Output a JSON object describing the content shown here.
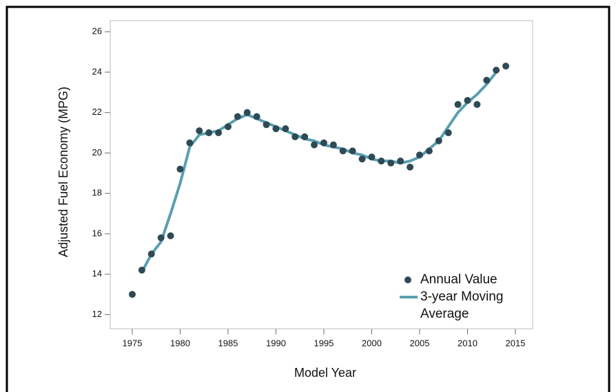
{
  "chart_data": {
    "type": "line",
    "x_label": "Model Year",
    "y_label": "Adjusted Fuel Economy (MPG)",
    "x": [
      1975,
      1976,
      1977,
      1978,
      1979,
      1980,
      1981,
      1982,
      1983,
      1984,
      1985,
      1986,
      1987,
      1988,
      1989,
      1990,
      1991,
      1992,
      1993,
      1994,
      1995,
      1996,
      1997,
      1998,
      1999,
      2000,
      2001,
      2002,
      2003,
      2004,
      2005,
      2006,
      2007,
      2008,
      2009,
      2010,
      2011,
      2012,
      2013,
      2014
    ],
    "series": [
      {
        "name": "Annual Value",
        "color": "#2e4a55",
        "mode": "markers",
        "values": [
          13.0,
          14.2,
          15.0,
          15.8,
          15.9,
          19.2,
          20.5,
          21.1,
          21.0,
          21.0,
          21.3,
          21.8,
          22.0,
          21.8,
          21.4,
          21.2,
          21.2,
          20.8,
          20.8,
          20.4,
          20.5,
          20.4,
          20.1,
          20.1,
          19.7,
          19.8,
          19.6,
          19.5,
          19.6,
          19.3,
          19.9,
          20.1,
          20.6,
          21.0,
          22.4,
          22.6,
          22.4,
          23.6,
          24.1,
          24.3
        ]
      },
      {
        "name": "3-year Moving Average",
        "color": "#5a9fb0",
        "mode": "line",
        "values": [
          null,
          14.1,
          15.0,
          15.6,
          17.0,
          18.5,
          20.3,
          20.9,
          21.0,
          21.1,
          21.4,
          21.7,
          21.9,
          21.7,
          21.5,
          21.3,
          21.1,
          20.9,
          20.7,
          20.6,
          20.4,
          20.3,
          20.2,
          20.0,
          19.9,
          19.7,
          19.6,
          19.6,
          19.5,
          19.6,
          19.8,
          20.2,
          20.6,
          21.3,
          22.0,
          22.5,
          22.9,
          23.4,
          24.0,
          null
        ]
      }
    ],
    "xlim": [
      1972.7,
      2016.8
    ],
    "ylim": [
      11.3,
      26.55
    ],
    "xticks": [
      1975,
      1980,
      1985,
      1990,
      1995,
      2000,
      2005,
      2010,
      2015
    ],
    "yticks": [
      12,
      14,
      16,
      18,
      20,
      22,
      24,
      26
    ],
    "grid": true,
    "legend": "lower right"
  }
}
